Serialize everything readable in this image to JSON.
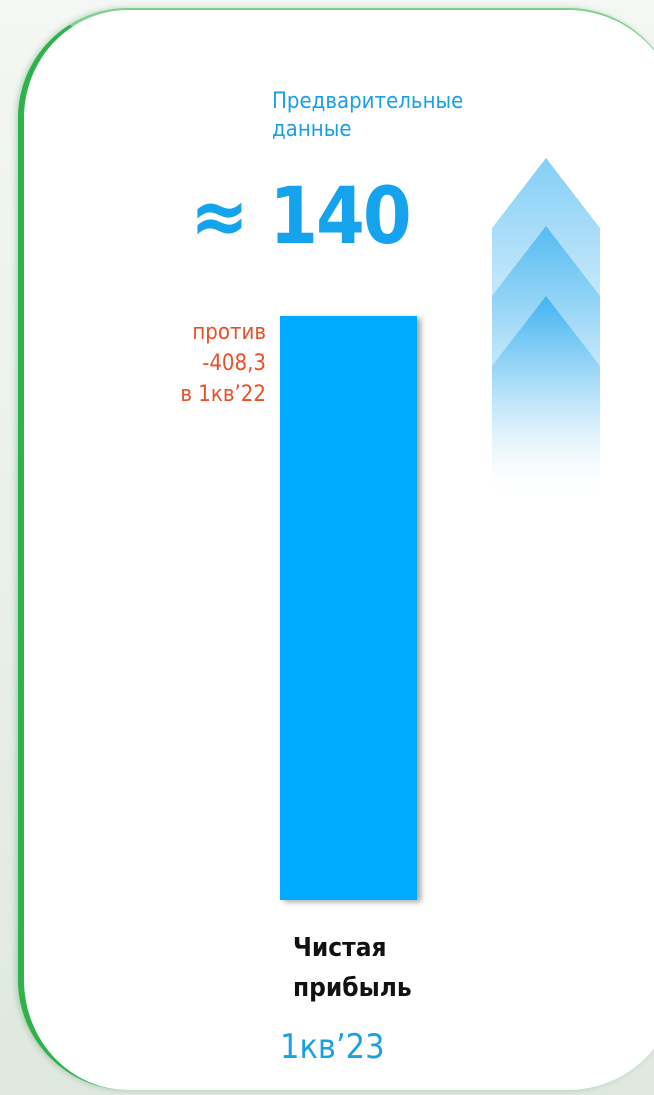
{
  "chart_data": {
    "type": "bar",
    "subtitle": "Предварительные данные",
    "categories": [
      "Чистая прибыль"
    ],
    "values": [
      140
    ],
    "value_labels": [
      "≈ 140"
    ],
    "color": "#00aaff",
    "annotation": [
      "против",
      "-408,3",
      "в 1кв’22"
    ],
    "period": "1кв’23"
  }
}
